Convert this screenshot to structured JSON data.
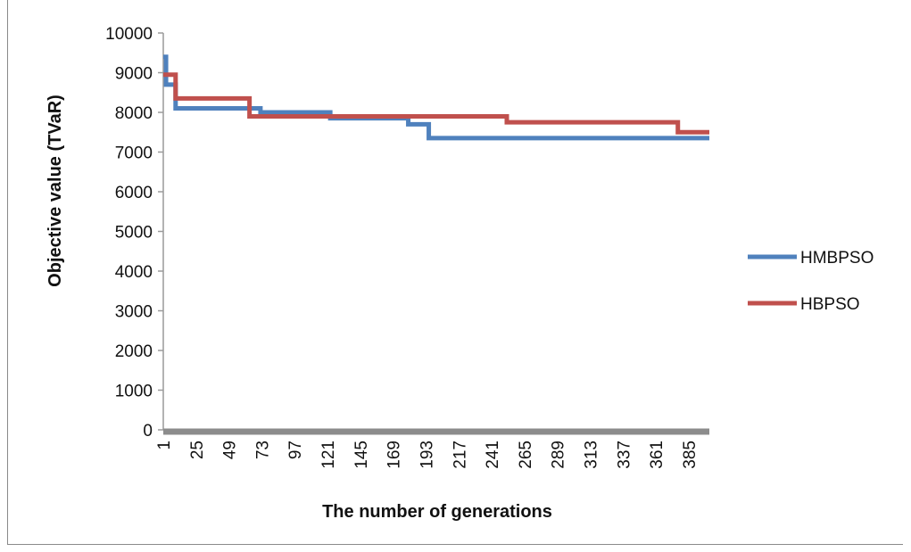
{
  "chart_data": {
    "type": "line",
    "xlabel": "The number of generations",
    "ylabel": "Objective value (TVaR)",
    "ylim": [
      0,
      10000
    ],
    "yticks": [
      0,
      1000,
      2000,
      3000,
      4000,
      5000,
      6000,
      7000,
      8000,
      9000,
      10000
    ],
    "xlim": [
      1,
      400
    ],
    "xticks": [
      1,
      25,
      49,
      73,
      97,
      121,
      145,
      169,
      193,
      217,
      241,
      265,
      289,
      313,
      337,
      361,
      385
    ],
    "legend_position": "right",
    "grid": false,
    "series": [
      {
        "name": "HMBPSO",
        "color": "#4f81bd",
        "step": true,
        "points": [
          [
            1,
            9400
          ],
          [
            3,
            8700
          ],
          [
            8,
            8700
          ],
          [
            10,
            8100
          ],
          [
            70,
            8100
          ],
          [
            72,
            8000
          ],
          [
            121,
            8000
          ],
          [
            123,
            7850
          ],
          [
            178,
            7850
          ],
          [
            180,
            7700
          ],
          [
            193,
            7700
          ],
          [
            195,
            7350
          ],
          [
            400,
            7350
          ]
        ]
      },
      {
        "name": "HBPSO",
        "color": "#c0504d",
        "step": true,
        "points": [
          [
            1,
            8950
          ],
          [
            8,
            8950
          ],
          [
            10,
            8350
          ],
          [
            62,
            8350
          ],
          [
            64,
            7900
          ],
          [
            250,
            7900
          ],
          [
            252,
            7750
          ],
          [
            375,
            7750
          ],
          [
            377,
            7500
          ],
          [
            400,
            7500
          ]
        ]
      }
    ]
  }
}
